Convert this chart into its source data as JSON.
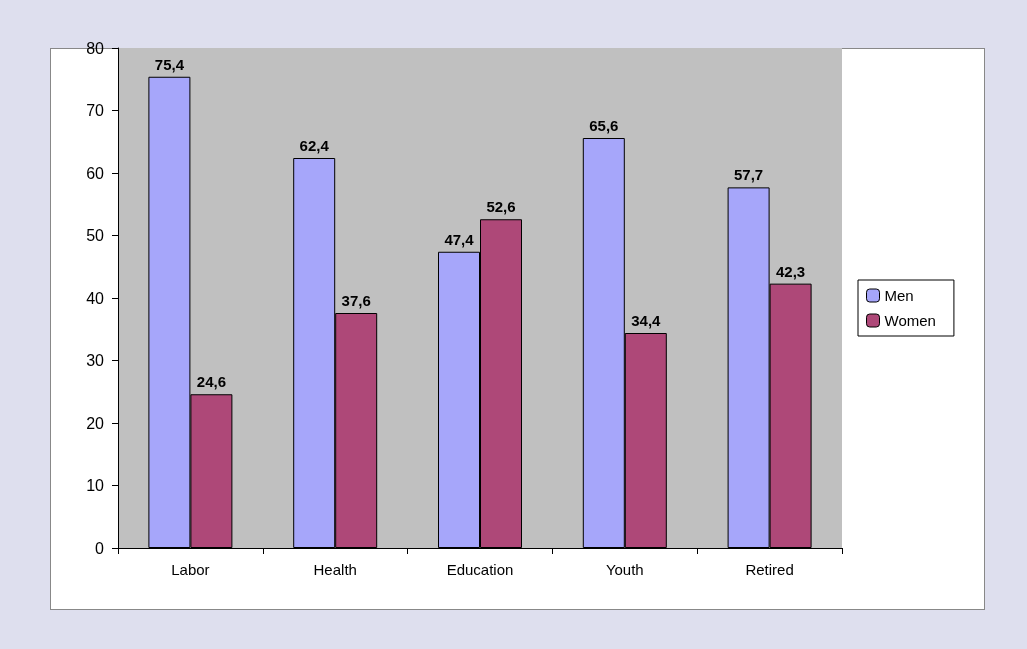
{
  "chart_data": {
    "type": "bar",
    "categories": [
      "Labor",
      "Health",
      "Education",
      "Youth",
      "Retired"
    ],
    "series": [
      {
        "name": "Men",
        "color": "#a6a6fa",
        "values": [
          75.4,
          62.4,
          47.4,
          65.6,
          57.7
        ],
        "value_labels": [
          "75,4",
          "62,4",
          "47,4",
          "65,6",
          "57,7"
        ]
      },
      {
        "name": "Women",
        "color": "#ae4878",
        "values": [
          24.6,
          37.6,
          52.6,
          34.4,
          42.3
        ],
        "value_labels": [
          "24,6",
          "37,6",
          "52,6",
          "34,4",
          "42,3"
        ]
      }
    ],
    "ylim": [
      0,
      80
    ],
    "yticks": [
      0,
      10,
      20,
      30,
      40,
      50,
      60,
      70,
      80
    ],
    "grid": false,
    "legend": "right"
  }
}
